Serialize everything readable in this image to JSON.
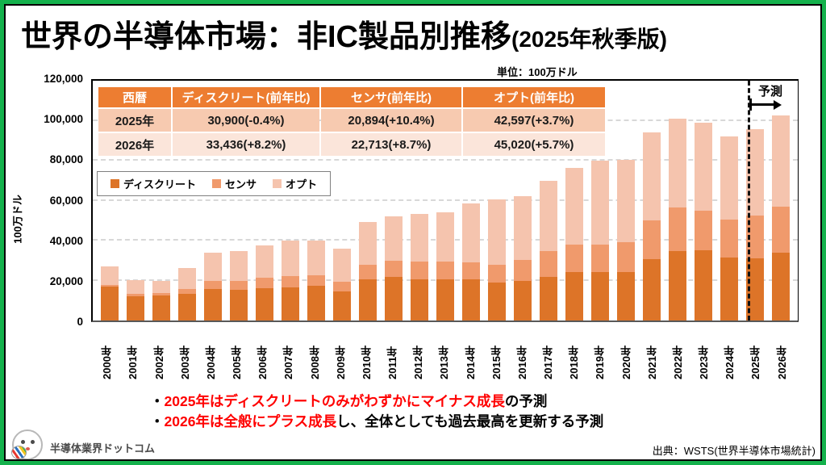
{
  "title": {
    "main": "世界の半導体市場：非IC製品別推移",
    "suffix": "(2025年秋季版)"
  },
  "unit_note": "単位：100万ドル",
  "table": {
    "headers": [
      "西暦",
      "ディスクリート(前年比)",
      "センサ(前年比)",
      "オプト(前年比)"
    ],
    "rows": [
      [
        "2025年",
        "30,900(-0.4%)",
        "20,894(+10.4%)",
        "42,597(+3.7%)"
      ],
      [
        "2026年",
        "33,436(+8.2%)",
        "22,713(+8.7%)",
        "45,020(+5.7%)"
      ]
    ]
  },
  "legend": [
    {
      "label": "ディスクリート",
      "color": "#DD7428"
    },
    {
      "label": "センサ",
      "color": "#F09A6C"
    },
    {
      "label": "オプト",
      "color": "#F5C4AE"
    }
  ],
  "forecast_label": "予測",
  "y_axis": {
    "title": "100万ドル",
    "ticks": [
      "120,000",
      "100,000",
      "80,000",
      "60,000",
      "40,000",
      "20,000",
      "0"
    ],
    "max": 120000
  },
  "chart_data": {
    "type": "bar",
    "stacked": true,
    "title": "世界の半導体市場：非IC製品別推移(2025年秋季版)",
    "unit": "100万ドル",
    "ylabel": "100万ドル",
    "ylim": [
      0,
      120000
    ],
    "grid": "dashed horizontal every 20,000",
    "legend_position": "upper-left box",
    "forecast_from": "2025年",
    "categories": [
      "2000年",
      "2001年",
      "2002年",
      "2003年",
      "2004年",
      "2005年",
      "2006年",
      "2007年",
      "2008年",
      "2009年",
      "2010年",
      "2011年",
      "2012年",
      "2013年",
      "2014年",
      "2015年",
      "2016年",
      "2017年",
      "2018年",
      "2019年",
      "2020年",
      "2021年",
      "2022年",
      "2023年",
      "2024年",
      "2025年",
      "2026年"
    ],
    "series": [
      {
        "name": "ディスクリート",
        "color": "#DD7428",
        "values": [
          16700,
          12000,
          12300,
          13000,
          15500,
          15000,
          16000,
          16500,
          17000,
          14500,
          20500,
          21500,
          20500,
          20500,
          20200,
          18600,
          19400,
          21600,
          24100,
          23900,
          23800,
          30300,
          34100,
          34600,
          31024,
          30900,
          33436
        ]
      },
      {
        "name": "センサ",
        "color": "#F09A6C",
        "values": [
          800,
          1000,
          1100,
          2500,
          4000,
          4500,
          5000,
          5500,
          5500,
          4500,
          7000,
          8000,
          8500,
          8700,
          8400,
          8800,
          10500,
          12600,
          13300,
          13500,
          15000,
          19100,
          21800,
          19800,
          18926,
          20894,
          22713
        ]
      },
      {
        "name": "オプト",
        "color": "#F5C4AE",
        "values": [
          9200,
          6900,
          6300,
          10500,
          14000,
          14700,
          16200,
          17500,
          16800,
          16500,
          21300,
          22000,
          23700,
          24100,
          29200,
          32400,
          31600,
          34800,
          38000,
          41600,
          40400,
          43400,
          43900,
          43200,
          41077,
          42597,
          45020
        ]
      }
    ]
  },
  "annotations": [
    {
      "bullet": "・",
      "red": "2025年はディスクリートのみがわずかにマイナス成長",
      "black": "の予測"
    },
    {
      "bullet": "・",
      "red": "2026年は全般にプラス成長",
      "black": "し、全体としても過去最高を更新する予測"
    }
  ],
  "footer": {
    "logo_text": "半導体業界ドットコム",
    "source": "出典：WSTS(世界半導体市場統計)"
  }
}
